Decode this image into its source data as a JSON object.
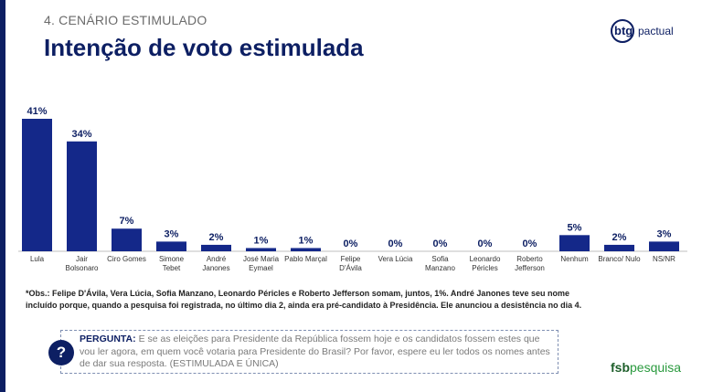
{
  "header": {
    "section": "4. CENÁRIO ESTIMULADO",
    "title": "Intenção de voto estimulada"
  },
  "logo": {
    "brand": "btg",
    "suffix": "pactual"
  },
  "colors": {
    "bar": "#142889",
    "title": "#0d1f63",
    "accent": "#0d1f63",
    "fsb_dark": "#1d5e2a",
    "fsb_light": "#2a9a3e"
  },
  "chart_data": {
    "type": "bar",
    "categories": [
      [
        "Lula"
      ],
      [
        "Jair",
        "Bolsonaro"
      ],
      [
        "Ciro Gomes"
      ],
      [
        "Simone",
        "Tebet"
      ],
      [
        "André",
        "Janones"
      ],
      [
        "José Maria",
        "Eymael"
      ],
      [
        "Pablo Marçal"
      ],
      [
        "Felipe",
        "D'Ávila"
      ],
      [
        "Vera Lúcia"
      ],
      [
        "Sofia",
        "Manzano"
      ],
      [
        "Leonardo",
        "Péricles"
      ],
      [
        "Roberto",
        "Jefferson"
      ],
      [
        "Nenhum"
      ],
      [
        "Branco/ Nulo"
      ],
      [
        "NS/NR"
      ]
    ],
    "values": [
      41,
      34,
      7,
      3,
      2,
      1,
      1,
      0,
      0,
      0,
      0,
      0,
      5,
      2,
      3
    ],
    "value_labels": [
      "41%",
      "34%",
      "7%",
      "3%",
      "2%",
      "1%",
      "1%",
      "0%",
      "0%",
      "0%",
      "0%",
      "0%",
      "5%",
      "2%",
      "3%"
    ],
    "ylim": [
      0,
      41
    ],
    "grid": false
  },
  "obs": "*Obs.: Felipe D'Ávila, Vera Lúcia, Sofia Manzano, Leonardo Péricles e Roberto Jefferson somam, juntos, 1%. André Janones teve seu nome incluído porque, quando a pesquisa foi registrada, no último dia 2, ainda era pré-candidato à Presidência. Ele anunciou a desistência no dia 4.",
  "question": {
    "icon": "question-icon",
    "mark": "?",
    "label": "PERGUNTA:",
    "text": "E se as eleições para Presidente da República fossem hoje e os candidatos fossem estes que vou ler agora, em quem você votaria para Presidente do Brasil? Por favor, espere eu ler todos os nomes antes de dar sua resposta. (ESTIMULADA E ÚNICA)"
  },
  "footer_logo": {
    "part1": "fsb",
    "part2": "pesquisa"
  }
}
